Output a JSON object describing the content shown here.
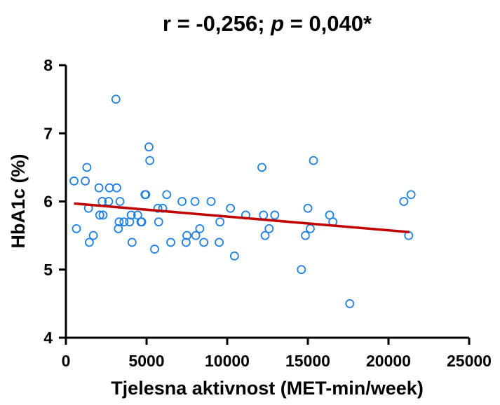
{
  "chart_data": {
    "type": "scatter",
    "title_parts": {
      "r_label": "r",
      "r_value": " = -0,256; ",
      "p_label": "p",
      "p_value": " = 0,040*"
    },
    "xlabel": "Tjelesna aktivnost (MET-min/week)",
    "ylabel": "HbA1c (%)",
    "xlim": [
      0,
      25000
    ],
    "ylim": [
      4,
      8
    ],
    "xticks": [
      0,
      5000,
      10000,
      15000,
      20000,
      25000
    ],
    "xtick_labels": [
      "0",
      "5000",
      "10000",
      "15000",
      "20000",
      "25000"
    ],
    "yticks": [
      4,
      5,
      6,
      7,
      8
    ],
    "ytick_labels": [
      "4",
      "5",
      "6",
      "7",
      "8"
    ],
    "grid": false,
    "colors": {
      "points": "#1f7fe0",
      "fit_line": "#c00000",
      "axes": "#000000"
    },
    "points": [
      {
        "x": 500,
        "y": 6.3
      },
      {
        "x": 650,
        "y": 5.6
      },
      {
        "x": 1200,
        "y": 6.3
      },
      {
        "x": 1300,
        "y": 6.5
      },
      {
        "x": 1400,
        "y": 5.9
      },
      {
        "x": 1450,
        "y": 5.4
      },
      {
        "x": 1700,
        "y": 5.5
      },
      {
        "x": 2050,
        "y": 6.2
      },
      {
        "x": 2100,
        "y": 5.8
      },
      {
        "x": 2250,
        "y": 6.0
      },
      {
        "x": 2300,
        "y": 5.8
      },
      {
        "x": 2650,
        "y": 6.0
      },
      {
        "x": 2700,
        "y": 6.2
      },
      {
        "x": 3100,
        "y": 7.5
      },
      {
        "x": 3150,
        "y": 6.2
      },
      {
        "x": 3250,
        "y": 5.6
      },
      {
        "x": 3300,
        "y": 5.7
      },
      {
        "x": 3350,
        "y": 6.0
      },
      {
        "x": 3600,
        "y": 5.7
      },
      {
        "x": 3950,
        "y": 5.7
      },
      {
        "x": 4050,
        "y": 5.8
      },
      {
        "x": 4100,
        "y": 5.4
      },
      {
        "x": 4450,
        "y": 5.8
      },
      {
        "x": 4650,
        "y": 5.7
      },
      {
        "x": 4700,
        "y": 5.7
      },
      {
        "x": 4900,
        "y": 6.1
      },
      {
        "x": 4950,
        "y": 6.1
      },
      {
        "x": 5150,
        "y": 6.8
      },
      {
        "x": 5200,
        "y": 6.6
      },
      {
        "x": 5500,
        "y": 5.3
      },
      {
        "x": 5700,
        "y": 5.9
      },
      {
        "x": 5750,
        "y": 5.7
      },
      {
        "x": 6000,
        "y": 5.9
      },
      {
        "x": 6250,
        "y": 6.1
      },
      {
        "x": 6500,
        "y": 5.4
      },
      {
        "x": 7200,
        "y": 6.0
      },
      {
        "x": 7450,
        "y": 5.4
      },
      {
        "x": 7500,
        "y": 5.5
      },
      {
        "x": 8000,
        "y": 6.0
      },
      {
        "x": 8050,
        "y": 5.5
      },
      {
        "x": 8300,
        "y": 5.6
      },
      {
        "x": 8550,
        "y": 5.4
      },
      {
        "x": 9000,
        "y": 6.0
      },
      {
        "x": 9500,
        "y": 5.4
      },
      {
        "x": 9550,
        "y": 5.7
      },
      {
        "x": 10200,
        "y": 5.9
      },
      {
        "x": 10450,
        "y": 5.2
      },
      {
        "x": 11150,
        "y": 5.8
      },
      {
        "x": 12150,
        "y": 6.5
      },
      {
        "x": 12250,
        "y": 5.8
      },
      {
        "x": 12350,
        "y": 5.5
      },
      {
        "x": 12600,
        "y": 5.6
      },
      {
        "x": 12950,
        "y": 5.8
      },
      {
        "x": 14600,
        "y": 5.0
      },
      {
        "x": 14850,
        "y": 5.5
      },
      {
        "x": 15000,
        "y": 5.9
      },
      {
        "x": 15150,
        "y": 5.6
      },
      {
        "x": 15350,
        "y": 6.6
      },
      {
        "x": 16350,
        "y": 5.8
      },
      {
        "x": 16550,
        "y": 5.7
      },
      {
        "x": 17600,
        "y": 4.5
      },
      {
        "x": 20950,
        "y": 6.0
      },
      {
        "x": 21250,
        "y": 5.5
      },
      {
        "x": 21400,
        "y": 6.1
      }
    ],
    "fit_line": {
      "x_start": 500,
      "y_start": 5.97,
      "x_end": 21300,
      "y_end": 5.55
    }
  }
}
